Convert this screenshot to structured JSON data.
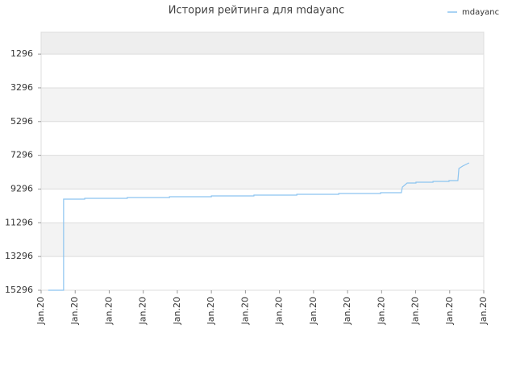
{
  "chart_data": {
    "type": "line",
    "title": "История рейтинга для mdayanc",
    "x": [
      0.21,
      0.66,
      0.66,
      1.28,
      1.28,
      2.53,
      2.53,
      3.77,
      3.77,
      5.0,
      5.0,
      6.25,
      6.25,
      7.51,
      7.51,
      8.74,
      8.74,
      9.97,
      9.97,
      10.58,
      10.61,
      10.75,
      11.01,
      11.01,
      11.51,
      11.51,
      11.98,
      11.98,
      12.24,
      12.27,
      12.38,
      12.57
    ],
    "series": [
      {
        "name": "mdayanc",
        "color": "#8cc4f0",
        "values": [
          15296,
          15296,
          9895,
          9895,
          9847,
          9847,
          9799,
          9799,
          9751,
          9751,
          9703,
          9703,
          9656,
          9656,
          9608,
          9608,
          9560,
          9560,
          9512,
          9512,
          9178,
          8939,
          8939,
          8891,
          8891,
          8843,
          8843,
          8795,
          8795,
          8078,
          7935,
          7744
        ]
      }
    ],
    "xlim": [
      0,
      13
    ],
    "xticks": [
      {
        "value": 0,
        "label": "Jan.20"
      },
      {
        "value": 1,
        "label": "Jan.20"
      },
      {
        "value": 2,
        "label": "Jan.20"
      },
      {
        "value": 3,
        "label": "Jan.20"
      },
      {
        "value": 4,
        "label": "Jan.20"
      },
      {
        "value": 5,
        "label": "Jan.20"
      },
      {
        "value": 6,
        "label": "Jan.20"
      },
      {
        "value": 7,
        "label": "Jan.20"
      },
      {
        "value": 8,
        "label": "Jan.20"
      },
      {
        "value": 9,
        "label": "Jan.20"
      },
      {
        "value": 10,
        "label": "Jan.20"
      },
      {
        "value": 11,
        "label": "Jan.20"
      },
      {
        "value": 12,
        "label": "Jan.20"
      },
      {
        "value": 13,
        "label": "Jan.20"
      }
    ],
    "ylim": [
      15296,
      0
    ],
    "yticks": [
      1296,
      3296,
      5296,
      7296,
      9296,
      11296,
      13296,
      15296
    ],
    "grid": true,
    "legend": "top-right"
  }
}
